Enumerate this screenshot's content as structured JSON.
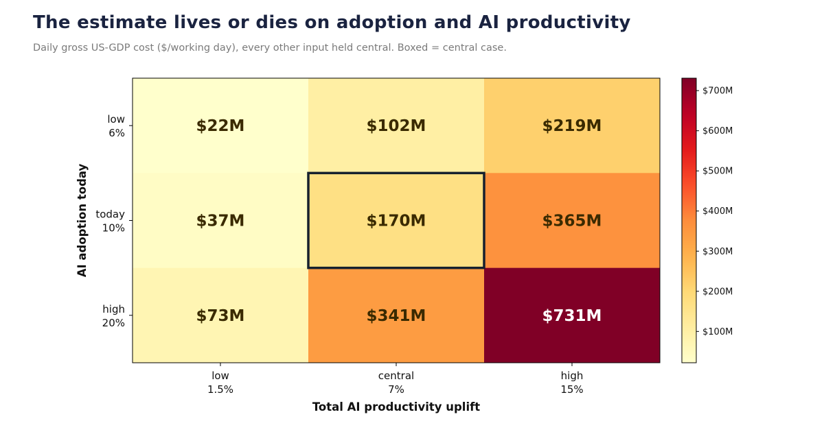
{
  "header": {
    "title": "The estimate lives or dies on adoption and AI productivity",
    "subtitle": "Daily gross US-GDP cost ($/working day), every other input held central. Boxed = central case."
  },
  "chart_data": {
    "type": "heatmap",
    "xlabel": "Total AI productivity uplift",
    "ylabel": "AI adoption today",
    "x_categories": [
      {
        "name": "low",
        "value": "1.5%"
      },
      {
        "name": "central",
        "value": "7%"
      },
      {
        "name": "high",
        "value": "15%"
      }
    ],
    "y_categories": [
      {
        "name": "low",
        "value": "6%"
      },
      {
        "name": "today",
        "value": "10%"
      },
      {
        "name": "high",
        "value": "20%"
      }
    ],
    "values": [
      [
        22,
        102,
        219
      ],
      [
        37,
        170,
        365
      ],
      [
        73,
        341,
        731
      ]
    ],
    "labels": [
      [
        "$22M",
        "$102M",
        "$219M"
      ],
      [
        "$37M",
        "$170M",
        "$365M"
      ],
      [
        "$73M",
        "$341M",
        "$731M"
      ]
    ],
    "highlight_cell": {
      "row": 1,
      "col": 1
    },
    "colorbar": {
      "colormap": "YlOrRd",
      "min": 22,
      "max": 731,
      "ticks": [
        {
          "value": 100,
          "label": "$100M"
        },
        {
          "value": 200,
          "label": "$200M"
        },
        {
          "value": 300,
          "label": "$300M"
        },
        {
          "value": 400,
          "label": "$400M"
        },
        {
          "value": 500,
          "label": "$500M"
        },
        {
          "value": 600,
          "label": "$600M"
        },
        {
          "value": 700,
          "label": "$700M"
        }
      ]
    },
    "colors": {
      "highlight_border": "#16202e",
      "label_dark": "#3a2a00",
      "label_light": "#ffffff"
    }
  }
}
